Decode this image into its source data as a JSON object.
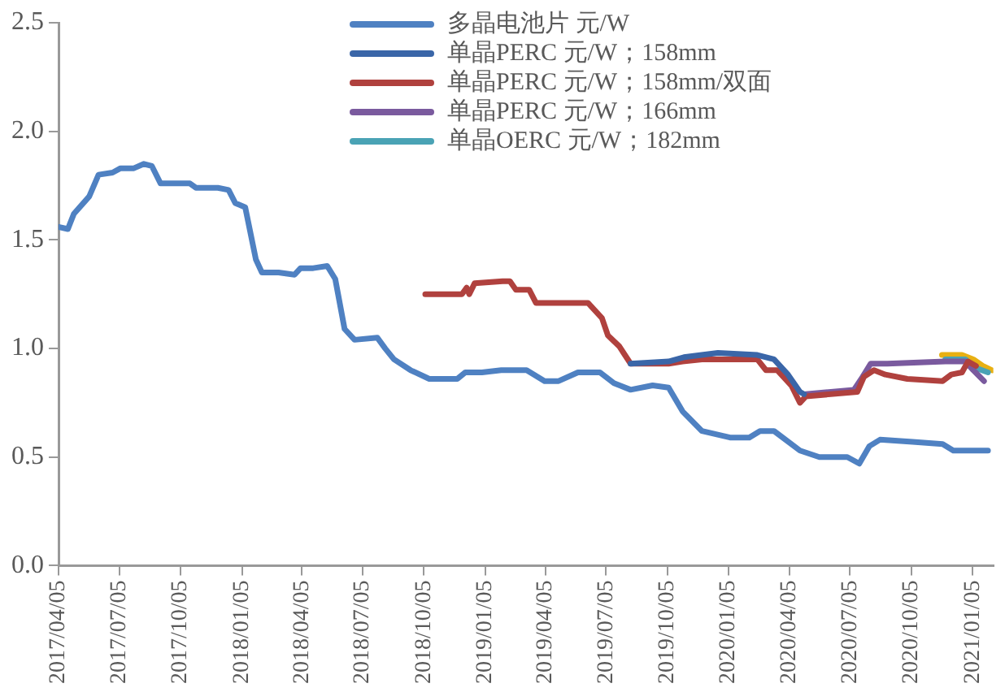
{
  "chart_data": {
    "type": "line",
    "marker": "none",
    "line_style": "solid",
    "grid": false,
    "legend": "top",
    "xlim": [
      "2017-04-05",
      "2021-02-05"
    ],
    "xticks": [
      {
        "value": "2017-04-05",
        "label": "2017/04/05"
      },
      {
        "value": "2017-07-05",
        "label": "2017/07/05"
      },
      {
        "value": "2017-10-05",
        "label": "2017/10/05"
      },
      {
        "value": "2018-01-05",
        "label": "2018/01/05"
      },
      {
        "value": "2018-04-05",
        "label": "2018/04/05"
      },
      {
        "value": "2018-07-05",
        "label": "2018/07/05"
      },
      {
        "value": "2018-10-05",
        "label": "2018/10/05"
      },
      {
        "value": "2019-01-05",
        "label": "2019/01/05"
      },
      {
        "value": "2019-04-05",
        "label": "2019/04/05"
      },
      {
        "value": "2019-07-05",
        "label": "2019/07/05"
      },
      {
        "value": "2019-10-05",
        "label": "2019/10/05"
      },
      {
        "value": "2020-01-05",
        "label": "2020/01/05"
      },
      {
        "value": "2020-04-05",
        "label": "2020/04/05"
      },
      {
        "value": "2020-07-05",
        "label": "2020/07/05"
      },
      {
        "value": "2020-10-05",
        "label": "2020/10/05"
      },
      {
        "value": "2021-01-05",
        "label": "2021/01/05"
      }
    ],
    "ylim": [
      0,
      2.5
    ],
    "yticks": [
      {
        "value": 0,
        "label": "0.0"
      },
      0.5,
      {
        "value": 1,
        "label": "1.0"
      },
      1.5,
      {
        "value": 2,
        "label": "2.0"
      },
      2.5
    ],
    "series": [
      {
        "name": "多晶电池片 元/W",
        "color": "#4f81c2",
        "x": [
          "2017-04-05",
          "2017-04-19",
          "2017-04-28",
          "2017-05-21",
          "2017-06-04",
          "2017-06-25",
          "2017-07-07",
          "2017-07-27",
          "2017-08-11",
          "2017-08-23",
          "2017-09-05",
          "2017-10-19",
          "2017-10-28",
          "2017-11-30",
          "2017-12-16",
          "2017-12-26",
          "2018-01-10",
          "2018-01-26",
          "2018-02-04",
          "2018-03-01",
          "2018-03-25",
          "2018-04-03",
          "2018-04-22",
          "2018-05-13",
          "2018-05-25",
          "2018-06-08",
          "2018-06-23",
          "2018-07-27",
          "2018-08-08",
          "2018-08-21",
          "2018-09-15",
          "2018-10-13",
          "2018-11-24",
          "2018-12-06",
          "2018-12-31",
          "2019-01-29",
          "2019-03-08",
          "2019-04-04",
          "2019-04-25",
          "2019-05-24",
          "2019-06-26",
          "2019-07-17",
          "2019-08-11",
          "2019-09-13",
          "2019-10-07",
          "2019-10-28",
          "2019-11-26",
          "2020-01-07",
          "2020-02-05",
          "2020-02-21",
          "2020-03-13",
          "2020-04-21",
          "2020-05-20",
          "2020-07-01",
          "2020-07-19",
          "2020-08-03",
          "2020-08-19",
          "2020-10-07",
          "2020-11-21",
          "2020-12-07",
          "2021-01-28"
        ],
        "values": [
          1.56,
          1.55,
          1.62,
          1.7,
          1.8,
          1.81,
          1.83,
          1.83,
          1.85,
          1.84,
          1.76,
          1.76,
          1.74,
          1.74,
          1.73,
          1.67,
          1.65,
          1.41,
          1.35,
          1.35,
          1.34,
          1.37,
          1.37,
          1.38,
          1.32,
          1.09,
          1.04,
          1.05,
          1.0,
          0.95,
          0.9,
          0.86,
          0.86,
          0.89,
          0.89,
          0.9,
          0.9,
          0.85,
          0.85,
          0.89,
          0.89,
          0.84,
          0.81,
          0.83,
          0.82,
          0.71,
          0.62,
          0.59,
          0.59,
          0.62,
          0.62,
          0.53,
          0.5,
          0.5,
          0.47,
          0.55,
          0.58,
          0.57,
          0.56,
          0.53,
          0.53
        ]
      },
      {
        "name": "单晶PERC 元/W；158mm",
        "color": "#3a66a8",
        "x": [
          "2019-08-11",
          "2019-10-07",
          "2019-10-30",
          "2019-12-20",
          "2020-02-17",
          "2020-03-13",
          "2020-04-03",
          "2020-04-21",
          "2020-04-27"
        ],
        "values": [
          0.93,
          0.94,
          0.96,
          0.98,
          0.97,
          0.95,
          0.88,
          0.8,
          0.79
        ]
      },
      {
        "name": "单晶PERC 元/W；158mm/双面",
        "color": "#b0413e",
        "x": [
          "2018-10-07",
          "2018-12-01",
          "2018-12-08",
          "2018-12-12",
          "2018-12-20",
          "2019-01-31",
          "2019-02-11",
          "2019-02-20",
          "2019-03-12",
          "2019-03-22",
          "2019-06-08",
          "2019-06-29",
          "2019-07-08",
          "2019-07-25",
          "2019-08-11",
          "2019-10-07",
          "2019-10-28",
          "2019-11-26",
          "2020-02-17",
          "2020-03-01",
          "2020-03-18",
          "2020-04-08",
          "2020-04-21",
          "2020-04-30",
          "2020-07-16",
          "2020-07-26",
          "2020-08-10",
          "2020-08-27",
          "2020-09-29",
          "2020-11-21",
          "2020-12-04",
          "2020-12-20",
          "2020-12-29",
          "2021-01-10"
        ],
        "values": [
          1.25,
          1.25,
          1.28,
          1.25,
          1.3,
          1.31,
          1.31,
          1.27,
          1.27,
          1.21,
          1.21,
          1.14,
          1.06,
          1.01,
          0.93,
          0.93,
          0.94,
          0.95,
          0.95,
          0.9,
          0.9,
          0.83,
          0.75,
          0.78,
          0.8,
          0.87,
          0.9,
          0.88,
          0.86,
          0.85,
          0.88,
          0.89,
          0.94,
          0.92
        ]
      },
      {
        "name": "单晶PERC 元/W；166mm",
        "color": "#7a5a9e",
        "x": [
          "2020-04-30",
          "2020-07-11",
          "2020-07-24",
          "2020-08-05",
          "2020-08-30",
          "2020-11-25",
          "2020-12-25",
          "2021-01-06",
          "2021-01-22"
        ],
        "values": [
          0.79,
          0.81,
          0.87,
          0.93,
          0.93,
          0.94,
          0.94,
          0.9,
          0.85
        ]
      },
      {
        "name": "单晶OERC 元/W；182mm",
        "color": "#4aa3b5",
        "x": [
          "2020-11-25",
          "2020-12-25",
          "2021-01-10",
          "2021-01-28"
        ],
        "values": [
          0.95,
          0.95,
          0.91,
          0.89
        ]
      },
      {
        "color": "#e8b012",
        "x": [
          "2020-11-20",
          "2020-12-20",
          "2021-01-06",
          "2021-01-20",
          "2021-02-03"
        ],
        "values": [
          0.97,
          0.97,
          0.95,
          0.92,
          0.9
        ]
      }
    ]
  }
}
